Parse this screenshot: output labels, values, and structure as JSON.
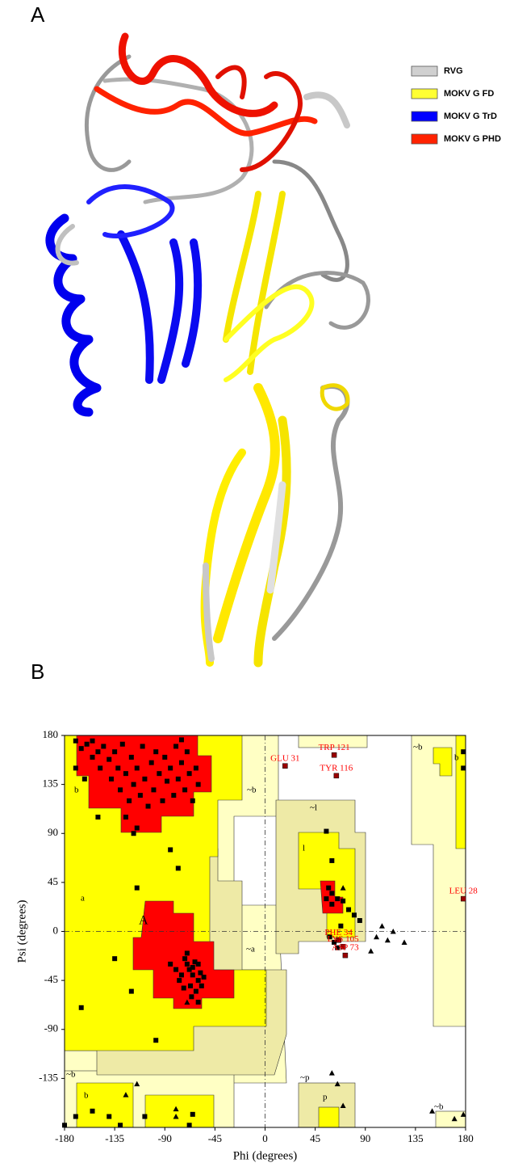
{
  "panel_labels": [
    "A",
    "B"
  ],
  "legend": [
    {
      "name": "RVG",
      "color": "#d0d0d0"
    },
    {
      "name": "MOKV G FD",
      "color": "#ffff33"
    },
    {
      "name": "MOKV G TrD",
      "color": "#0000ff"
    },
    {
      "name": "MOKV G PHD",
      "color": "#ff2200"
    }
  ],
  "region_labels": [
    "b",
    "a",
    "A",
    "~b",
    "~a",
    "~l",
    "l",
    "~p",
    "p",
    "~b",
    "b",
    "~b",
    "b",
    "~b"
  ],
  "chart_data": {
    "type": "scatter",
    "xlabel": "Phi (degrees)",
    "ylabel": "Psi (degrees)",
    "xlim": [
      -180,
      180
    ],
    "ylim": [
      -180,
      180
    ],
    "xticks": [
      -180,
      -135,
      -90,
      -45,
      0,
      45,
      90,
      135,
      180
    ],
    "yticks": [
      -135,
      -90,
      -45,
      0,
      45,
      90,
      135,
      180
    ],
    "series": [
      {
        "marker": "square",
        "color": "#000000",
        "x": [
          -170,
          -165,
          -160,
          -155,
          -150,
          -148,
          -145,
          -140,
          -138,
          -135,
          -132,
          -130,
          -128,
          -125,
          -122,
          -120,
          -118,
          -115,
          -112,
          -110,
          -108,
          -105,
          -102,
          -100,
          -98,
          -95,
          -92,
          -90,
          -88,
          -85,
          -82,
          -80,
          -78,
          -75,
          -72,
          -70,
          -68,
          -65,
          -62,
          -60,
          -170,
          -162,
          -155,
          -125,
          -115,
          -75,
          -150,
          -118,
          -85,
          -78,
          -115,
          -98,
          -120,
          -135,
          -165,
          -60,
          -170,
          -155,
          -140,
          -130,
          -108,
          -65,
          -68,
          -180,
          -72,
          -70,
          -68,
          -65,
          -63,
          -60,
          -58,
          -75,
          -67,
          -62,
          -55,
          -70,
          -80,
          -77,
          -65,
          -60,
          -57,
          -73,
          -85,
          -66,
          55,
          60,
          57,
          60,
          65,
          55,
          60,
          70,
          75,
          68,
          58,
          62,
          65,
          80,
          85,
          178,
          178
        ],
        "y": [
          175,
          168,
          172,
          160,
          165,
          150,
          170,
          158,
          140,
          165,
          150,
          130,
          172,
          145,
          120,
          160,
          135,
          150,
          125,
          170,
          140,
          115,
          155,
          130,
          165,
          145,
          120,
          160,
          138,
          150,
          125,
          170,
          140,
          155,
          130,
          165,
          145,
          120,
          150,
          135,
          150,
          140,
          175,
          105,
          95,
          176,
          105,
          90,
          75,
          58,
          40,
          -100,
          -55,
          -25,
          -70,
          -65,
          -170,
          -165,
          -170,
          -178,
          -170,
          -168,
          -178,
          -178,
          -25,
          -30,
          -35,
          -40,
          -28,
          -45,
          -38,
          -40,
          -50,
          -55,
          -42,
          -20,
          -35,
          -45,
          -33,
          -30,
          -50,
          -52,
          -30,
          -60,
          92,
          65,
          40,
          35,
          30,
          30,
          25,
          28,
          20,
          5,
          -5,
          -10,
          -15,
          15,
          10,
          165,
          150
        ]
      },
      {
        "marker": "triangle",
        "color": "#000000",
        "x": [
          -70,
          100,
          105,
          110,
          115,
          125,
          95,
          70,
          60,
          65,
          70,
          150,
          170,
          178,
          -115,
          -125,
          -80,
          -80
        ],
        "y": [
          -65,
          -5,
          5,
          -8,
          0,
          -10,
          -18,
          40,
          -130,
          -140,
          -160,
          -165,
          -172,
          -168,
          -140,
          -150,
          -170,
          -163
        ]
      }
    ],
    "annotations": [
      {
        "text": "GLU 31",
        "x": 18,
        "y": 152,
        "color": "#ff0000"
      },
      {
        "text": "TRP 121",
        "x": 62,
        "y": 162,
        "color": "#ff0000"
      },
      {
        "text": "TYR 116",
        "x": 64,
        "y": 143,
        "color": "#ff0000"
      },
      {
        "text": "LEU 28",
        "x": 178,
        "y": 30,
        "color": "#ff0000"
      },
      {
        "text": "PHE 34",
        "x": 66,
        "y": -8,
        "color": "#ff0000"
      },
      {
        "text": "LYS 105",
        "x": 70,
        "y": -14,
        "color": "#ff0000"
      },
      {
        "text": "ASP 73",
        "x": 72,
        "y": -22,
        "color": "#ff0000"
      }
    ]
  }
}
